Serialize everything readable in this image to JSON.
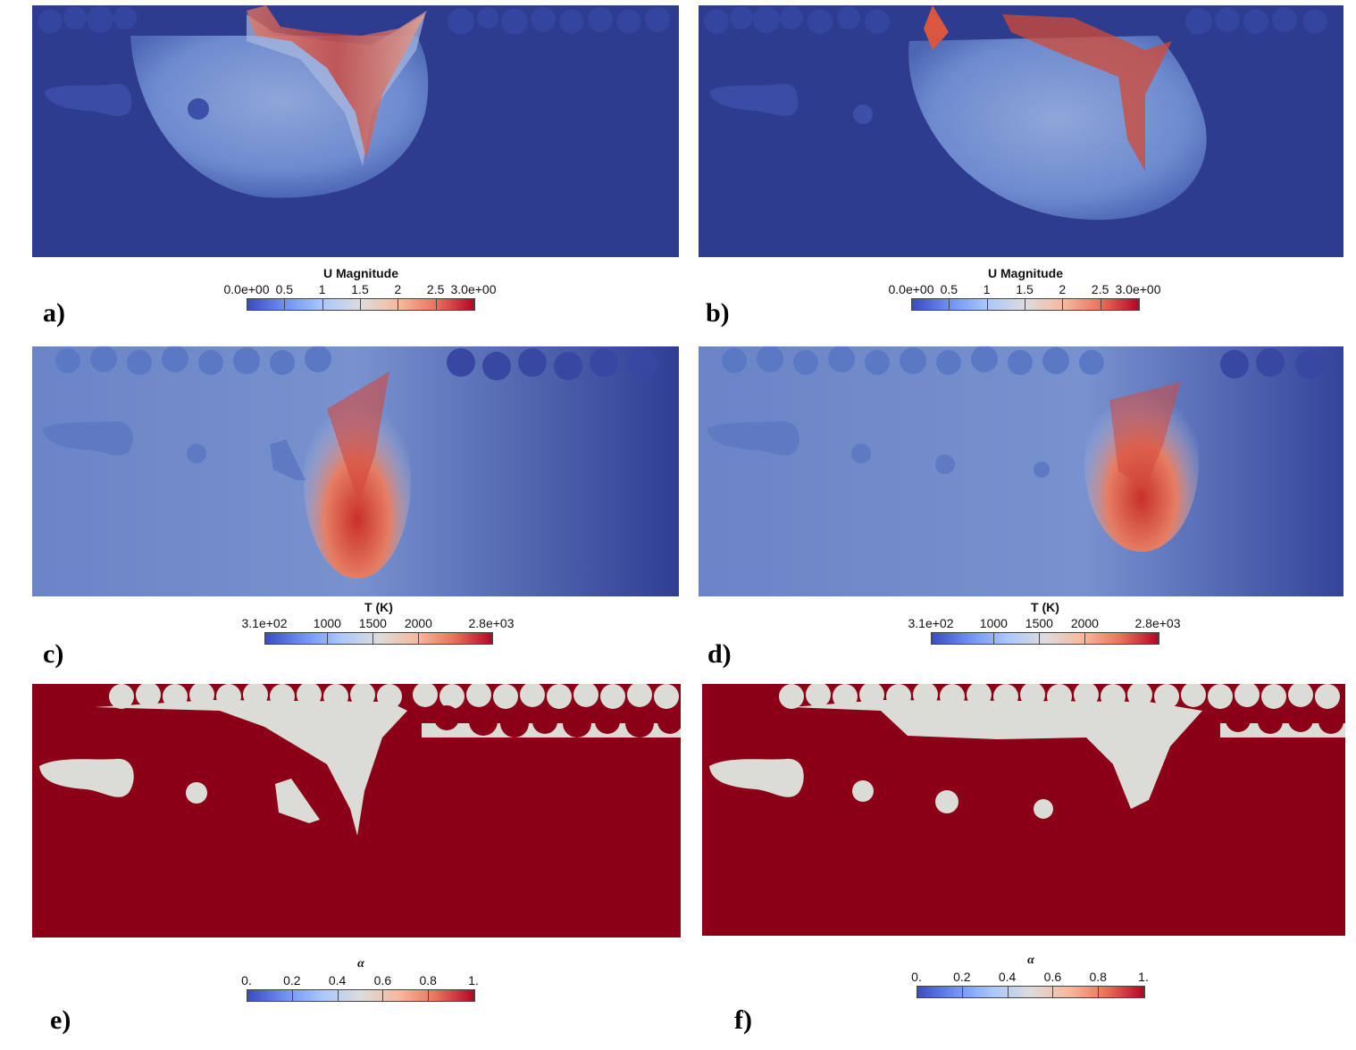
{
  "panels": [
    {
      "id": "a",
      "label": "a)",
      "field": "velocity",
      "colorbar": {
        "title": "U Magnitude",
        "ticks": [
          "0.0e+00",
          "0.5",
          "1",
          "1.5",
          "2",
          "2.5",
          "3.0e+00"
        ]
      }
    },
    {
      "id": "b",
      "label": "b)",
      "field": "velocity",
      "colorbar": {
        "title": "U Magnitude",
        "ticks": [
          "0.0e+00",
          "0.5",
          "1",
          "1.5",
          "2",
          "2.5",
          "3.0e+00"
        ]
      }
    },
    {
      "id": "c",
      "label": "c)",
      "field": "temperature",
      "colorbar": {
        "title": "T (K)",
        "ticks": [
          "3.1e+02",
          "1000",
          "1500",
          "2000",
          "2.8e+03"
        ]
      }
    },
    {
      "id": "d",
      "label": "d)",
      "field": "temperature",
      "colorbar": {
        "title": "T (K)",
        "ticks": [
          "3.1e+02",
          "1000",
          "1500",
          "2000",
          "2.8e+03"
        ]
      }
    },
    {
      "id": "e",
      "label": "e)",
      "field": "alpha",
      "colorbar": {
        "title": "α",
        "ticks": [
          "0.",
          "0.2",
          "0.4",
          "0.6",
          "0.8",
          "1."
        ]
      }
    },
    {
      "id": "f",
      "label": "f)",
      "field": "alpha",
      "colorbar": {
        "title": "α",
        "ticks": [
          "0.",
          "0.2",
          "0.4",
          "0.6",
          "0.8",
          "1."
        ]
      }
    }
  ],
  "colors": {
    "cool_blue": "#2e3c8f",
    "mid_blue": "#5a74b8",
    "solid_red": "#8b0016",
    "gas_gray": "#dcdcd6",
    "hot_red": "#c8302a"
  }
}
